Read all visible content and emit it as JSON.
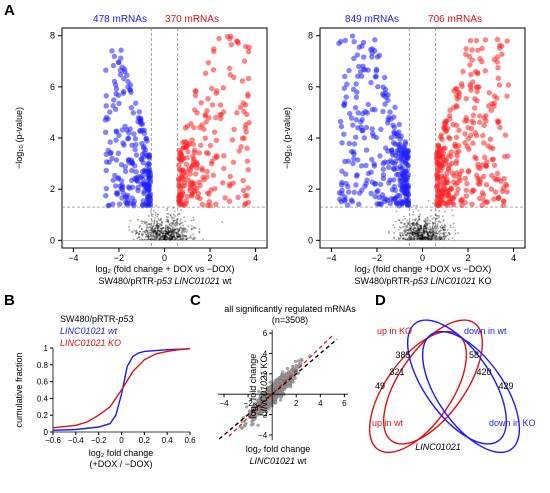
{
  "panels": {
    "a": "A",
    "b": "B",
    "c": "C",
    "d": "D"
  },
  "chart_data": [
    {
      "type": "scatter",
      "id": "volcano-wt",
      "count_down": "478 mRNAs",
      "count_up": "370 mRNAs",
      "xlabel": "log₂ (fold change + DOX vs −DOX)",
      "ylabel": "−log₁₀ (p-value)",
      "caption_pre": "SW480/pRTR-",
      "caption_gene": "p53 LINC01021",
      "caption_post": " wt",
      "x_ticks": [
        "−4",
        "−2",
        "0",
        "2",
        "4"
      ],
      "y_ticks": [
        "0",
        "2",
        "4",
        "6",
        "8"
      ],
      "xlim": [
        -4.5,
        4.5
      ],
      "ylim": [
        -0.3,
        8.3
      ],
      "fc_threshold": [
        -0.58,
        0.58
      ],
      "p_threshold": 1.3,
      "colors": {
        "down": "#1f1fff",
        "up": "#ff2020",
        "ns": "#000000"
      },
      "down_ymax": 7.6,
      "up_ymax": 8.0,
      "down_xmin": -2.6,
      "up_xmax": 3.8,
      "n_down_drawn": 240,
      "n_up_drawn": 230,
      "n_ns_drawn": 700
    },
    {
      "type": "scatter",
      "id": "volcano-ko",
      "count_down": "849 mRNAs",
      "count_up": "706 mRNAs",
      "xlabel": "log₂ (fold change +DOX vs −DOX)",
      "ylabel": "−log₁₀ (p-value)",
      "caption_pre": "SW480/pRTR-",
      "caption_gene": "p53 LINC01021",
      "caption_post": " KO",
      "x_ticks": [
        "−4",
        "−2",
        "0",
        "2",
        "4"
      ],
      "y_ticks": [
        "0",
        "2",
        "4",
        "6",
        "8"
      ],
      "xlim": [
        -4.5,
        4.5
      ],
      "ylim": [
        -0.3,
        8.3
      ],
      "fc_threshold": [
        -0.58,
        0.58
      ],
      "p_threshold": 1.3,
      "colors": {
        "down": "#1f1fff",
        "up": "#ff2020",
        "ns": "#000000"
      },
      "down_ymax": 8.0,
      "up_ymax": 8.0,
      "down_xmin": -3.7,
      "up_xmax": 3.8,
      "n_down_drawn": 330,
      "n_up_drawn": 330,
      "n_ns_drawn": 700
    },
    {
      "type": "line",
      "id": "cumulative",
      "title_pre": "SW480/pRTR-",
      "title_gene": "p53",
      "legend": [
        {
          "name": "LINC01021 wt",
          "color": "#1b1bff"
        },
        {
          "name": "LINC01021 KO",
          "color": "#e01010"
        }
      ],
      "ylabel": "cumulative fraction",
      "xlabel": "log₂ fold change",
      "xlabel2": "(+DOX / −DOX)",
      "x_ticks": [
        "−0.6",
        "−0.4",
        "−0.2",
        "0",
        "0.2",
        "0.4",
        "0.6"
      ],
      "y_ticks": [
        "0",
        "0.2",
        "0.4",
        "0.6",
        "0.8",
        "1"
      ],
      "xlim": [
        -0.6,
        0.6
      ],
      "ylim": [
        0,
        1
      ],
      "series": [
        {
          "name": "LINC01021 wt",
          "x": [
            -0.6,
            -0.4,
            -0.2,
            -0.1,
            -0.05,
            0,
            0.05,
            0.1,
            0.15,
            0.2,
            0.4,
            0.6
          ],
          "y": [
            0.02,
            0.03,
            0.06,
            0.1,
            0.2,
            0.45,
            0.78,
            0.9,
            0.94,
            0.96,
            0.98,
            0.99
          ]
        },
        {
          "name": "LINC01021 KO",
          "x": [
            -0.6,
            -0.4,
            -0.3,
            -0.2,
            -0.1,
            0,
            0.1,
            0.2,
            0.3,
            0.4,
            0.5,
            0.6
          ],
          "y": [
            0.05,
            0.08,
            0.12,
            0.2,
            0.3,
            0.5,
            0.72,
            0.86,
            0.93,
            0.96,
            0.98,
            0.99
          ]
        }
      ]
    },
    {
      "type": "scatter",
      "id": "correlation",
      "title": "all significantly regulated mRNAs",
      "subtitle": "(n=3508)",
      "xlabel": "log₂ fold change",
      "xlabel_gene": "LINC01021",
      "xlabel_suffix": " wt",
      "ylabel": "log₂ fold change",
      "ylabel_gene": "LINC01021",
      "ylabel_suffix": " KO",
      "x_ticks": [
        "−4",
        "−2",
        "2",
        "4",
        "6"
      ],
      "y_ticks": [
        "−4",
        "−2",
        "2",
        "4",
        "6"
      ],
      "xlim": [
        -4.5,
        6.3
      ],
      "ylim": [
        -4.5,
        6.3
      ],
      "fit_slope": 1.15,
      "diag_slope": 1.0,
      "n_drawn": 900
    },
    {
      "type": "diagram",
      "id": "venn",
      "sets": [
        {
          "name": "up in wt",
          "color": "#e01010"
        },
        {
          "name": "up in KO",
          "color": "#e01010"
        },
        {
          "name": "down in wt",
          "color": "#1b1bff"
        },
        {
          "name": "down in KO",
          "color": "#1b1bff"
        }
      ],
      "counts": {
        "upKO_only": "385",
        "upKO_upwt": "321",
        "upwt_only": "49",
        "downwt_only": "58",
        "downwt_downKO": "420",
        "downKO_only": "429"
      },
      "gene_label": "LINC01021"
    }
  ]
}
